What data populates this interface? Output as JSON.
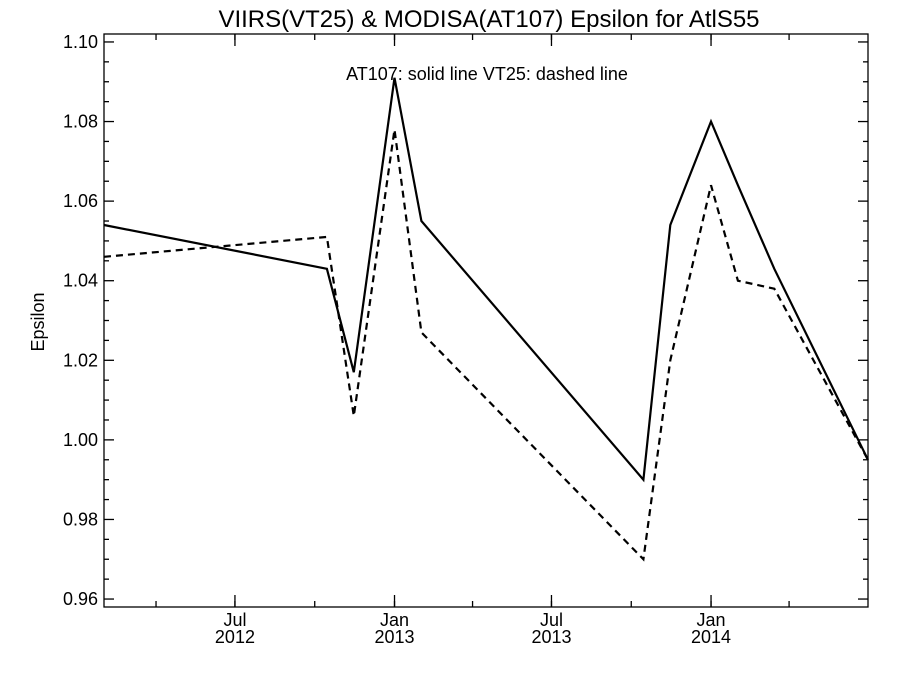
{
  "chart_data": {
    "type": "line",
    "title": "VIIRS(VT25) & MODISA(AT107)  Epsilon for AtlS55",
    "ylabel": "Epsilon",
    "xlabel": "",
    "annotation": "AT107: solid line   VT25: dashed line",
    "ylim": [
      0.958,
      1.102
    ],
    "xlim": [
      "2012-02-01",
      "2014-07-01"
    ],
    "yticks": [
      "0.96",
      "0.98",
      "1.00",
      "1.02",
      "1.04",
      "1.06",
      "1.08",
      "1.10"
    ],
    "xticks": [
      {
        "date": "2012-07-01",
        "month": "Jul",
        "year": "2012"
      },
      {
        "date": "2013-01-01",
        "month": "Jan",
        "year": "2013"
      },
      {
        "date": "2013-07-01",
        "month": "Jul",
        "year": "2013"
      },
      {
        "date": "2014-01-01",
        "month": "Jan",
        "year": "2014"
      }
    ],
    "grid": false,
    "legend": "none",
    "series": [
      {
        "name": "AT107",
        "style": "solid",
        "color": "#000000",
        "x": [
          "2012-02-01",
          "2012-10-15",
          "2012-11-15",
          "2013-01-01",
          "2013-02-01",
          "2013-10-15",
          "2013-11-15",
          "2014-01-01",
          "2014-02-01",
          "2014-03-15",
          "2014-07-01"
        ],
        "y": [
          1.054,
          1.043,
          1.017,
          1.091,
          1.055,
          0.99,
          1.054,
          1.08,
          1.064,
          1.043,
          0.995
        ]
      },
      {
        "name": "VT25",
        "style": "dashed",
        "color": "#000000",
        "x": [
          "2012-02-01",
          "2012-10-15",
          "2012-11-15",
          "2013-01-01",
          "2013-02-01",
          "2013-10-15",
          "2013-11-15",
          "2014-01-01",
          "2014-02-01",
          "2014-03-15",
          "2014-07-01"
        ],
        "y": [
          1.046,
          1.051,
          1.006,
          1.078,
          1.027,
          0.97,
          1.02,
          1.064,
          1.04,
          1.038,
          0.995
        ]
      }
    ]
  }
}
